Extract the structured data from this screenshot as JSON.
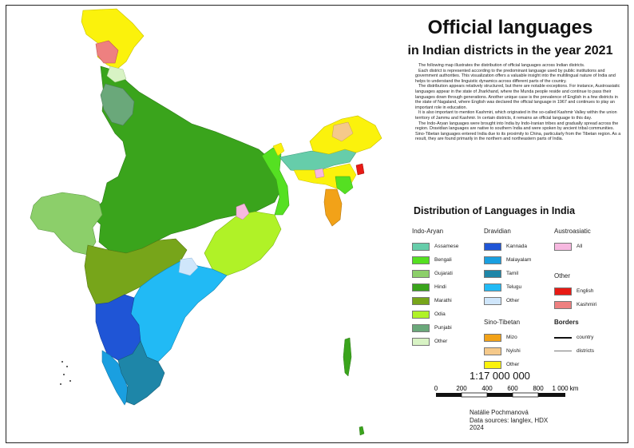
{
  "title": "Official languages",
  "subtitle": "in Indian districts in the year 2021",
  "description": [
    "The following map illustrates the distribution of official languages across Indian districts.",
    "Each district is represented according to the predominant language used by public institutions and government authorities. This visualization offers a valuable insight into the multilingual nature of India and helps to understand the linguistic dynamics across different parts of the country.",
    "The distribution appears relatively structured, but there are notable exceptions. For instance, Austroasiatic languages appear in the state of Jharkhand, where the Munda people reside and continue to pass their languages down through generations. Another unique case is the prevalence of English in a few districts in the state of Nagaland, where English was declared the official language in 1967 and continues to play an important role in education.",
    "It is also important to mention Kashmiri, which originated in the so-called Kashmir Valley within the union territory of Jammu and Kashmir. In certain districts, it remains an official language to this day.",
    "The Indo-Aryan languages were brought into India by Indo-Iranian tribes and gradually spread across the region. Dravidian languages are native to southern India and were spoken by ancient tribal communities. Sino-Tibetan languages entered India due to its proximity to China, particularly from the Tibetan region. As a result, they are found primarily in the northern and northeastern parts of India."
  ],
  "legend_title": "Distribution of Languages in India",
  "legend": {
    "indo_aryan": {
      "heading": "Indo-Aryan",
      "items": [
        {
          "label": "Assamese",
          "color": "#66cdaa"
        },
        {
          "label": "Bengali",
          "color": "#55e022"
        },
        {
          "label": "Gujarati",
          "color": "#8ccf6a"
        },
        {
          "label": "Hindi",
          "color": "#3aa41c"
        },
        {
          "label": "Marathi",
          "color": "#77a51a"
        },
        {
          "label": "Odia",
          "color": "#b0f227"
        },
        {
          "label": "Punjabi",
          "color": "#6aa87a"
        },
        {
          "label": "Other",
          "color": "#d8f3c4"
        }
      ]
    },
    "dravidian": {
      "heading": "Dravidian",
      "items": [
        {
          "label": "Kannada",
          "color": "#1f55d6"
        },
        {
          "label": "Malayalam",
          "color": "#1a9fe0"
        },
        {
          "label": "Tamil",
          "color": "#1e86a8"
        },
        {
          "label": "Telugu",
          "color": "#21baf5"
        },
        {
          "label": "Other",
          "color": "#cfe6fb"
        }
      ]
    },
    "sino_tibetan": {
      "heading": "Sino-Tibetan",
      "items": [
        {
          "label": "Mizo",
          "color": "#f2a218"
        },
        {
          "label": "Nyishi",
          "color": "#f5c98a"
        },
        {
          "label": "Other",
          "color": "#fbf20c"
        }
      ]
    },
    "austroasiatic": {
      "heading": "Austroasiatic",
      "items": [
        {
          "label": "All",
          "color": "#f7b8e0"
        }
      ]
    },
    "other": {
      "heading": "Other",
      "items": [
        {
          "label": "English",
          "color": "#e81a14"
        },
        {
          "label": "Kashmiri",
          "color": "#ee8080"
        }
      ]
    },
    "borders": {
      "heading": "Borders",
      "items": [
        {
          "label": "country"
        },
        {
          "label": "districts"
        }
      ]
    }
  },
  "scale_text": "1:17 000 000",
  "scalebar": {
    "ticks": [
      "0",
      "200",
      "400",
      "600",
      "800",
      "1 000 km"
    ]
  },
  "author": "Natálie Pochmanová",
  "sources": "Data sources: langlex, HDX",
  "year": "2024"
}
